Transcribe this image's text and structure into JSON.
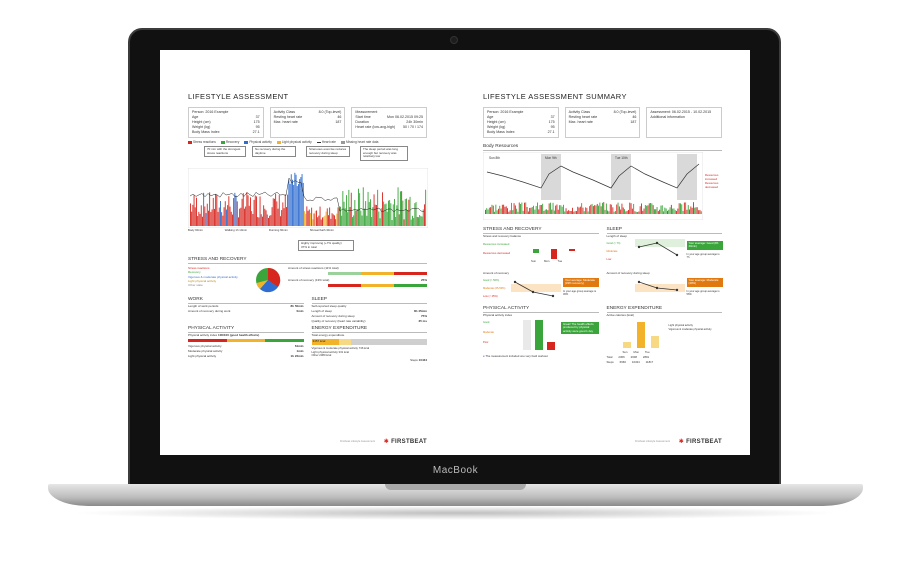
{
  "device": {
    "brand_label": "MacBook"
  },
  "left": {
    "title": "LIFESTYLE ASSESSMENT",
    "person": "Person: 2016 Example",
    "fields": [
      {
        "k": "Age",
        "v": "37"
      },
      {
        "k": "Height (cm)",
        "v": "175"
      },
      {
        "k": "Weight (kg)",
        "v": "95"
      },
      {
        "k": "Body Mass Index",
        "v": "27.1"
      }
    ],
    "fields2": [
      {
        "k": "Activity Class",
        "v": "8.0 (Top-level)"
      },
      {
        "k": "Resting heart rate",
        "v": "46"
      },
      {
        "k": "Max. heart rate",
        "v": "187"
      }
    ],
    "measurement_label": "Measurement",
    "meas": [
      {
        "k": "Start time",
        "v": "Mon 06.02.2015 09:25"
      },
      {
        "k": "Duration",
        "v": "24h 30min"
      },
      {
        "k": "Heart rate (low-avg-high)",
        "v": "50 / 70 / 174"
      }
    ],
    "legend": [
      "Stress reactions",
      "Recovery",
      "Physical activity",
      "Light physical activity",
      "Heart rate",
      "Missing heart rate data"
    ],
    "notes": [
      "70 min with the strongest stress reactions",
      "No recovery during the daytime",
      "Strenuous exercise reduces recovery during sleep",
      "The sleep period was long enough but recovery was relatively low"
    ],
    "axis_bottom": [
      "Body 90min",
      "Walking 1h 10min",
      "Running 60min",
      "Shower/bath 30min"
    ],
    "rec_note": "Highly improving (+7% quality)",
    "energy_note": "37% in total",
    "stress_recovery": {
      "heading": "STRESS AND RECOVERY",
      "items": [
        "Stress reactions",
        "Recovery",
        "Vigorous & moderate physical activity",
        "Light physical activity",
        "Other state"
      ],
      "right": [
        {
          "label": "Amount of stress reactions (11% total)",
          "value": ""
        },
        {
          "label": "Amount of recovery (13% total)",
          "value": "25%"
        }
      ]
    },
    "work": {
      "heading": "WORK",
      "line1_label": "Length of work periods",
      "line1_value": "8h 50min",
      "line2_label": "Amount of recovery during work",
      "line2_value": "0min"
    },
    "sleep": {
      "heading": "SLEEP",
      "rows": [
        {
          "label": "Self-reported sleep quality",
          "value": ""
        },
        {
          "label": "Length of sleep",
          "value": "8h 45min"
        },
        {
          "label": "Amount of recovery during sleep",
          "value": "75%"
        },
        {
          "label": "Quality of recovery (heart rate variability)",
          "value": "35 ms"
        }
      ]
    },
    "physical": {
      "heading": "PHYSICAL ACTIVITY",
      "index_label": "Physical activity index",
      "index_value": "100/100 (good health effects)",
      "rows": [
        {
          "label": "Vigorous physical activity",
          "value": "61min"
        },
        {
          "label": "Moderate physical activity",
          "value": "1min"
        },
        {
          "label": "Light physical activity",
          "value": "1h 22min"
        }
      ]
    },
    "energy": {
      "heading": "ENERGY EXPENDITURE",
      "total_label": "Total energy expenditure",
      "total_value": "3457 kcal",
      "legend": [
        "Vigorous & moderate physical activity 746 kcal",
        "Light physical activity 331 kcal",
        "Other 2380 kcal"
      ],
      "steps_label": "Steps",
      "steps_value": "10434"
    },
    "footer": "Firstbeat Lifestyle Assessment",
    "brand": "FIRSTBEAT"
  },
  "right": {
    "title": "LIFESTYLE ASSESSMENT SUMMARY",
    "person": "Person: 2016 Example",
    "fields": [
      {
        "k": "Age",
        "v": "37"
      },
      {
        "k": "Height (cm)",
        "v": "175"
      },
      {
        "k": "Weight (kg)",
        "v": "95"
      },
      {
        "k": "Body Mass Index",
        "v": "27.1"
      }
    ],
    "fields2": [
      {
        "k": "Activity Class",
        "v": "8.0 (Top-level)"
      },
      {
        "k": "Resting heart rate",
        "v": "46"
      },
      {
        "k": "Max. heart rate",
        "v": "187"
      }
    ],
    "assessment": "Assessment: 06.02.2015 - 10.02.2015",
    "additional": "Additional information",
    "body_resources": "Body Resources",
    "days": [
      "Sun 8th",
      "Mon 9th",
      "Tue 10th"
    ],
    "br_right": [
      "Resources increased",
      "Resources decreased"
    ],
    "stress": {
      "heading": "STRESS AND RECOVERY",
      "balance_label": "Stress and recovery balance",
      "inc": "Resources increased",
      "dec": "Resources decreased",
      "days": [
        "Sun",
        "Mon",
        "Tue"
      ],
      "amount_label": "Amount of recovery",
      "good": "Good (> 50%)",
      "mod": "Moderate (25-50%)",
      "low": "Low (< 25%)",
      "avg_box": "Your average: Moderate (33% recovery)",
      "age_note": "In your age group average is 36%"
    },
    "sleep": {
      "heading": "SLEEP",
      "length_label": "Length of sleep",
      "good": "Good (> 7h)",
      "mod": "Moderate",
      "low": "Low",
      "avg_box": "Your average: Good (8h 40min)",
      "age_note": "In your age group average is 7h",
      "recovery_label": "Amount of recovery during sleep",
      "avg_box2": "Your average: Moderate (49%)",
      "age_note2": "In your age group average is 56%"
    },
    "physical": {
      "heading": "PHYSICAL ACTIVITY",
      "index_label": "Physical activity index",
      "good": "Good",
      "mod": "Moderate",
      "poor": "Poor",
      "box": "Great! The health effects produced by physical activity were good 1 day",
      "note": "The measurement included one very hard workout"
    },
    "energy": {
      "heading": "ENERGY EXPENDITURE",
      "active_label": "Active calories (kcal)",
      "legend": [
        "Light physical activity",
        "Vigorous & moderate physical activity"
      ],
      "total_label": "Total",
      "totals": [
        "2366",
        "2608",
        "2891"
      ],
      "steps_label": "Steps",
      "steps": [
        "6666",
        "10434",
        "11817"
      ],
      "days": [
        "Sun",
        "Mon",
        "Tue"
      ]
    },
    "footer": "Firstbeat Lifestyle Assessment",
    "brand": "FIRSTBEAT"
  }
}
